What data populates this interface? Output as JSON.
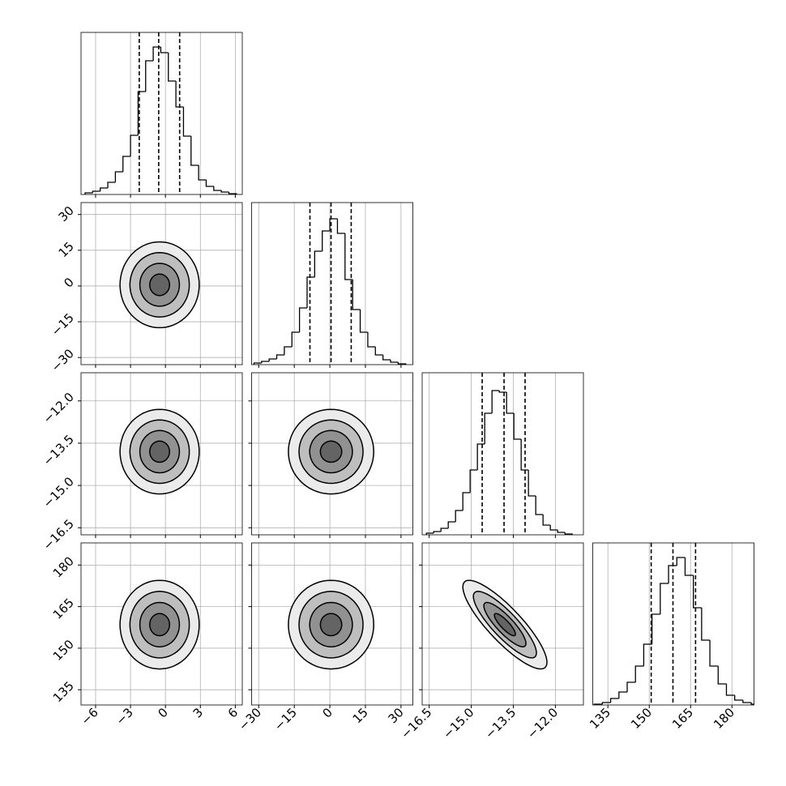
{
  "chart_data": {
    "type": "corner",
    "levels": [
      0.5,
      1,
      1.5,
      2
    ],
    "grid": true,
    "hist_color": "#000000",
    "contour_color": "#000000",
    "parameters": [
      {
        "range": [
          -7.25,
          6.6
        ],
        "ticks": [
          {
            "value": -6,
            "label": "−6"
          },
          {
            "value": -3,
            "label": "−3"
          },
          0,
          3,
          6
        ],
        "quantiles": [
          -2.25,
          -0.58,
          1.22
        ],
        "bins": [
          -6.9,
          -6.25,
          -5.6,
          -4.95,
          -4.3,
          -3.65,
          -3.0,
          -2.35,
          -1.7,
          -1.05,
          -0.4,
          0.25,
          0.9,
          1.55,
          2.2,
          2.85,
          3.5,
          4.15,
          4.8,
          5.45,
          6.1
        ],
        "counts": [
          2,
          4,
          8,
          15,
          28,
          47,
          73,
          127,
          165,
          182,
          175,
          140,
          108,
          72,
          36,
          18,
          10,
          5,
          3,
          1
        ],
        "hist_ylim": [
          0,
          200
        ]
      },
      {
        "range": [
          -33,
          35
        ],
        "ticks": [
          {
            "value": -30,
            "label": "−30"
          },
          {
            "value": -15,
            "label": "−15"
          },
          0,
          15,
          30
        ],
        "quantiles": [
          -8.4,
          0.5,
          9.0
        ],
        "bins": [
          -32,
          -28.8,
          -25.6,
          -22.4,
          -19.2,
          -16,
          -12.8,
          -9.6,
          -6.4,
          -3.2,
          0,
          3.2,
          6.4,
          9.6,
          12.8,
          16,
          19.2,
          22.4,
          25.6,
          28.8,
          32
        ],
        "counts": [
          2,
          4,
          7,
          12,
          22,
          40,
          70,
          108,
          140,
          165,
          180,
          162,
          105,
          68,
          40,
          22,
          12,
          6,
          3,
          1
        ],
        "hist_ylim": [
          0,
          200
        ]
      },
      {
        "range": [
          -16.75,
          -11.0
        ],
        "ticks": [
          {
            "value": -16.5,
            "label": "−16.5"
          },
          {
            "value": -15,
            "label": "−15.0"
          },
          {
            "value": -13.5,
            "label": "−13.5"
          },
          {
            "value": -12,
            "label": "−12.0"
          }
        ],
        "quantiles": [
          -14.61,
          -13.83,
          -13.08
        ],
        "bins": [
          -16.6,
          -16.34,
          -16.08,
          -15.82,
          -15.56,
          -15.3,
          -15.04,
          -14.78,
          -14.52,
          -14.26,
          -14.0,
          -13.74,
          -13.48,
          -13.22,
          -12.96,
          -12.7,
          -12.44,
          -12.18,
          -11.92,
          -11.66,
          -11.4
        ],
        "counts": [
          2,
          4,
          8,
          16,
          30,
          52,
          80,
          112,
          150,
          178,
          176,
          150,
          118,
          80,
          48,
          25,
          12,
          6,
          3,
          1
        ],
        "hist_ylim": [
          0,
          200
        ]
      },
      {
        "range": [
          129.5,
          188
        ],
        "ticks": [
          135,
          150,
          165,
          180
        ],
        "quantiles": [
          150.7,
          158.6,
          166.8
        ],
        "bins": [
          130,
          133,
          136,
          139,
          142,
          145,
          148,
          151,
          154,
          157,
          160,
          163,
          166,
          169,
          172,
          175,
          178,
          181,
          184,
          187,
          190
        ],
        "counts": [
          1,
          3,
          8,
          16,
          28,
          48,
          75,
          112,
          150,
          172,
          182,
          160,
          120,
          80,
          48,
          26,
          12,
          6,
          3,
          1
        ],
        "hist_ylim": [
          0,
          200
        ]
      }
    ],
    "pairs": [
      {
        "x": 0,
        "y": 1,
        "mean": [
          -0.5,
          0.5
        ],
        "sigma": [
          1.7,
          9
        ],
        "rho": 0
      },
      {
        "x": 0,
        "y": 2,
        "mean": [
          -0.5,
          -13.8
        ],
        "sigma": [
          1.7,
          0.75
        ],
        "rho": 0
      },
      {
        "x": 1,
        "y": 2,
        "mean": [
          0.5,
          -13.8
        ],
        "sigma": [
          9,
          0.75
        ],
        "rho": 0
      },
      {
        "x": 0,
        "y": 3,
        "mean": [
          -0.5,
          158.5
        ],
        "sigma": [
          1.7,
          8
        ],
        "rho": 0
      },
      {
        "x": 1,
        "y": 3,
        "mean": [
          0.5,
          158.5
        ],
        "sigma": [
          9,
          8
        ],
        "rho": 0
      },
      {
        "x": 2,
        "y": 3,
        "mean": [
          -13.8,
          158.5
        ],
        "sigma": [
          0.75,
          8
        ],
        "rho": -0.85
      }
    ]
  }
}
